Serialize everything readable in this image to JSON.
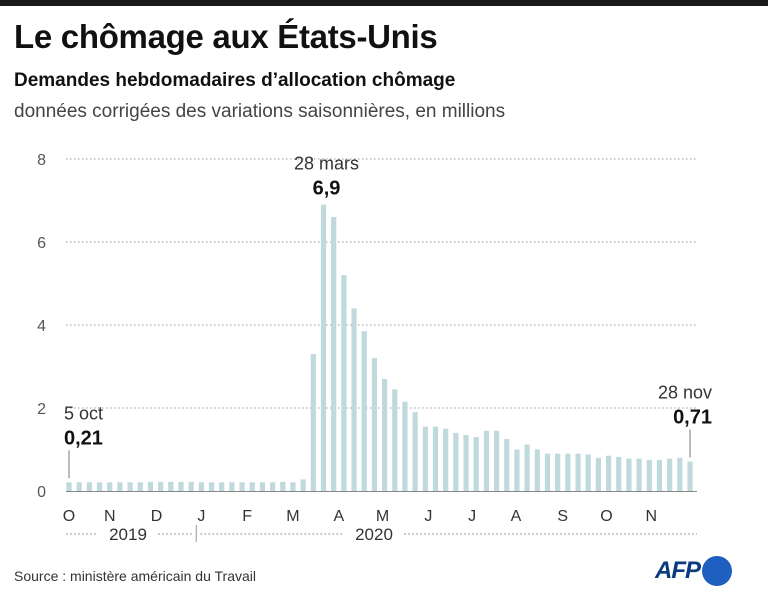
{
  "header": {
    "title": "Le chômage aux États-Unis",
    "subtitle": "Demandes hebdomadaires d’allocation chômage",
    "description": "données corrigées des variations saisonnières, en millions"
  },
  "footer": {
    "source": "Source : ministère américain du Travail",
    "logo_text": "AFP"
  },
  "colors": {
    "bar": "#bfd9dd",
    "grid": "#9a9a9a",
    "text": "#333333",
    "logo": "#0a3b7e",
    "logo_dot": "#1f5fbf"
  },
  "chart_data": {
    "type": "bar",
    "ylim": [
      0,
      8
    ],
    "yticks": [
      "0",
      "2",
      "4",
      "6",
      "8"
    ],
    "values": [
      0.21,
      0.21,
      0.21,
      0.21,
      0.21,
      0.21,
      0.21,
      0.21,
      0.22,
      0.22,
      0.22,
      0.22,
      0.22,
      0.21,
      0.21,
      0.21,
      0.21,
      0.21,
      0.21,
      0.21,
      0.21,
      0.22,
      0.21,
      0.28,
      3.3,
      6.9,
      6.6,
      5.2,
      4.4,
      3.85,
      3.2,
      2.7,
      2.45,
      2.15,
      1.9,
      1.55,
      1.55,
      1.5,
      1.4,
      1.35,
      1.3,
      1.45,
      1.45,
      1.25,
      1.0,
      1.12,
      1.0,
      0.9,
      0.9,
      0.9,
      0.9,
      0.88,
      0.8,
      0.85,
      0.82,
      0.78,
      0.78,
      0.75,
      0.75,
      0.78,
      0.8,
      0.71
    ],
    "month_labels": [
      {
        "label": "O",
        "bar": 0
      },
      {
        "label": "N",
        "bar": 4
      },
      {
        "label": "D",
        "bar": 8.6
      },
      {
        "label": "J",
        "bar": 13
      },
      {
        "label": "F",
        "bar": 17.5
      },
      {
        "label": "M",
        "bar": 22
      },
      {
        "label": "A",
        "bar": 26.5
      },
      {
        "label": "M",
        "bar": 30.8
      },
      {
        "label": "J",
        "bar": 35.3
      },
      {
        "label": "J",
        "bar": 39.6
      },
      {
        "label": "A",
        "bar": 43.9
      },
      {
        "label": "S",
        "bar": 48.5
      },
      {
        "label": "O",
        "bar": 52.8
      },
      {
        "label": "N",
        "bar": 57.2
      }
    ],
    "years": [
      {
        "label": "2019",
        "start_bar": 0,
        "end_bar": 12.5
      },
      {
        "label": "2020",
        "start_bar": 13.0,
        "end_bar": 61
      }
    ],
    "annotations": [
      {
        "bar": 0,
        "date": "5 oct",
        "value": "0,21",
        "align": "start",
        "leader": true
      },
      {
        "bar": 25,
        "date": "28 mars",
        "value": "6,9",
        "align": "middle",
        "leader": false
      },
      {
        "bar": 61,
        "date": "28 nov",
        "value": "0,71",
        "align": "end",
        "leader": true
      }
    ]
  }
}
